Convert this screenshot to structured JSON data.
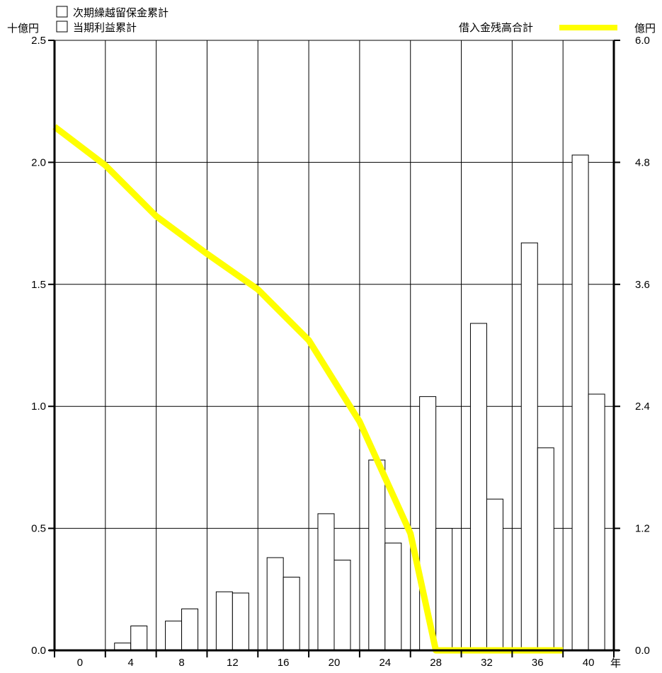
{
  "chart_data": {
    "type": "bar",
    "left_unit_label": "十億円",
    "right_unit_label": "億円",
    "x_unit_label": "年",
    "legend": {
      "bar_series": [
        "次期繰越留保金累計",
        "当期利益累計"
      ],
      "line_series": "借入金残高合計"
    },
    "categories": [
      "0",
      "4",
      "8",
      "12",
      "16",
      "20",
      "24",
      "28",
      "32",
      "36",
      "40"
    ],
    "y_left": {
      "range": [
        0,
        2.5
      ],
      "ticks": [
        "0.0",
        "0.5",
        "1.0",
        "1.5",
        "2.0",
        "2.5"
      ]
    },
    "y_right": {
      "range": [
        0,
        6.0
      ],
      "ticks": [
        "0.0",
        "1.2",
        "2.4",
        "3.6",
        "4.8",
        "6.0"
      ]
    },
    "series": [
      {
        "name": "次期繰越留保金累計",
        "axis": "left",
        "values": [
          0.0,
          0.03,
          0.12,
          0.24,
          0.38,
          0.56,
          0.78,
          1.04,
          1.34,
          1.67,
          2.03
        ]
      },
      {
        "name": "当期利益累計",
        "axis": "left",
        "values": [
          0.0,
          0.1,
          0.17,
          0.235,
          0.3,
          0.37,
          0.44,
          0.5,
          0.62,
          0.83,
          1.05
        ]
      },
      {
        "name": "借入金残高合計",
        "axis": "right",
        "type": "line",
        "color": "#ffff00",
        "x": [
          0,
          4,
          8,
          12,
          16,
          20,
          24,
          28,
          30,
          32,
          36,
          40
        ],
        "values": [
          5.15,
          4.77,
          4.27,
          3.9,
          3.55,
          3.05,
          2.25,
          1.15,
          0.0,
          0.0,
          0.0,
          0.0
        ]
      }
    ],
    "grid": true
  }
}
